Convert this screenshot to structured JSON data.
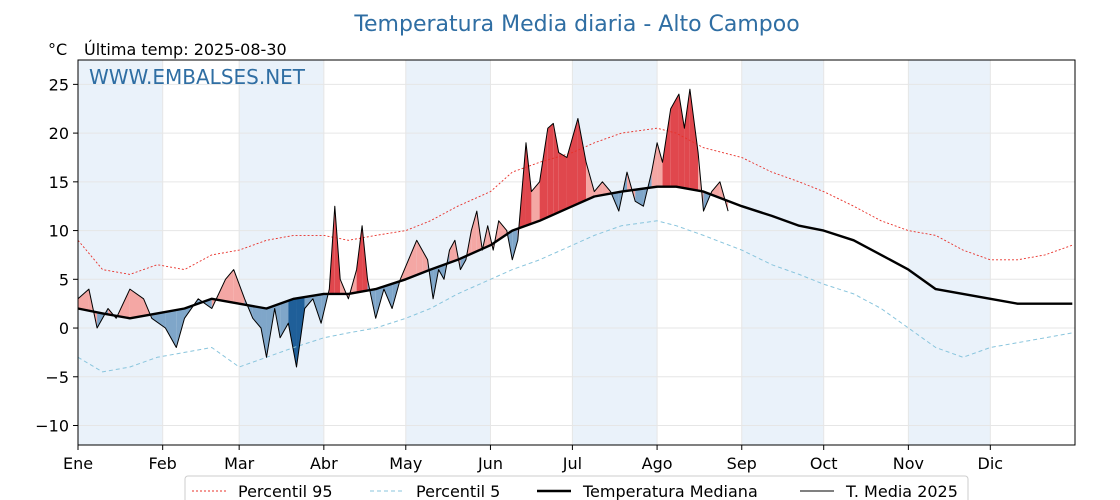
{
  "chart_data": {
    "type": "line",
    "title": "Temperatura Media diaria - Alto Campoo",
    "unit": "°C",
    "last_reading": "Última temp: 2025-08-30",
    "watermark": "WWW.EMBALSES.NET",
    "ylim": [
      -12,
      27.5
    ],
    "yticks": [
      -10,
      -5,
      0,
      5,
      10,
      15,
      20,
      25
    ],
    "months": [
      "Ene",
      "Feb",
      "Mar",
      "Abr",
      "May",
      "Jun",
      "Jul",
      "Ago",
      "Sep",
      "Oct",
      "Nov",
      "Dic"
    ],
    "month_start_days": [
      1,
      32,
      60,
      91,
      121,
      152,
      182,
      213,
      244,
      274,
      305,
      335
    ],
    "grid": true,
    "legend_position": "bottom",
    "colors": {
      "p95": "#e8312a",
      "p5": "#89c5dd",
      "median": "#000000",
      "current": "#000000",
      "above_fill": "#f4a7a4",
      "above_fill_strong": "#e0474d",
      "below_fill": "#7fa6c9",
      "below_fill_strong": "#1f5f99",
      "band": "#eaf2fa"
    },
    "series": [
      {
        "name": "Percentil 95",
        "style": "dotted",
        "points": [
          [
            1,
            9
          ],
          [
            10,
            6
          ],
          [
            20,
            5.5
          ],
          [
            30,
            6.5
          ],
          [
            40,
            6
          ],
          [
            50,
            7.5
          ],
          [
            60,
            8
          ],
          [
            70,
            9
          ],
          [
            80,
            9.5
          ],
          [
            91,
            9.5
          ],
          [
            100,
            9
          ],
          [
            110,
            9.5
          ],
          [
            121,
            10
          ],
          [
            130,
            11
          ],
          [
            140,
            12.5
          ],
          [
            152,
            14
          ],
          [
            160,
            16
          ],
          [
            170,
            17
          ],
          [
            182,
            18
          ],
          [
            190,
            19
          ],
          [
            200,
            20
          ],
          [
            213,
            20.5
          ],
          [
            220,
            20
          ],
          [
            230,
            18.5
          ],
          [
            244,
            17.5
          ],
          [
            255,
            16
          ],
          [
            265,
            15
          ],
          [
            274,
            14
          ],
          [
            285,
            12.5
          ],
          [
            295,
            11
          ],
          [
            305,
            10
          ],
          [
            315,
            9.5
          ],
          [
            325,
            8
          ],
          [
            335,
            7
          ],
          [
            345,
            7
          ],
          [
            355,
            7.5
          ],
          [
            365,
            8.5
          ]
        ]
      },
      {
        "name": "Percentil 5",
        "style": "dashed",
        "points": [
          [
            1,
            -3
          ],
          [
            10,
            -4.5
          ],
          [
            20,
            -4
          ],
          [
            30,
            -3
          ],
          [
            40,
            -2.5
          ],
          [
            50,
            -2
          ],
          [
            60,
            -4
          ],
          [
            70,
            -3
          ],
          [
            80,
            -2
          ],
          [
            91,
            -1
          ],
          [
            100,
            -0.5
          ],
          [
            110,
            0
          ],
          [
            121,
            1
          ],
          [
            130,
            2
          ],
          [
            140,
            3.5
          ],
          [
            152,
            5
          ],
          [
            160,
            6
          ],
          [
            170,
            7
          ],
          [
            182,
            8.5
          ],
          [
            190,
            9.5
          ],
          [
            200,
            10.5
          ],
          [
            213,
            11
          ],
          [
            220,
            10.5
          ],
          [
            230,
            9.5
          ],
          [
            244,
            8
          ],
          [
            255,
            6.5
          ],
          [
            265,
            5.5
          ],
          [
            274,
            4.5
          ],
          [
            285,
            3.5
          ],
          [
            295,
            2
          ],
          [
            305,
            0
          ],
          [
            315,
            -2
          ],
          [
            325,
            -3
          ],
          [
            335,
            -2
          ],
          [
            345,
            -1.5
          ],
          [
            355,
            -1
          ],
          [
            365,
            -0.5
          ]
        ]
      },
      {
        "name": "Temperatura Mediana",
        "style": "solid-thick",
        "points": [
          [
            1,
            2
          ],
          [
            10,
            1.5
          ],
          [
            20,
            1
          ],
          [
            30,
            1.5
          ],
          [
            40,
            2
          ],
          [
            50,
            3
          ],
          [
            60,
            2.5
          ],
          [
            70,
            2
          ],
          [
            80,
            3
          ],
          [
            91,
            3.5
          ],
          [
            100,
            3.5
          ],
          [
            110,
            4
          ],
          [
            121,
            5
          ],
          [
            130,
            6
          ],
          [
            140,
            7
          ],
          [
            152,
            8.5
          ],
          [
            160,
            10
          ],
          [
            170,
            11
          ],
          [
            182,
            12.5
          ],
          [
            190,
            13.5
          ],
          [
            200,
            14
          ],
          [
            213,
            14.5
          ],
          [
            220,
            14.5
          ],
          [
            230,
            14
          ],
          [
            244,
            12.5
          ],
          [
            255,
            11.5
          ],
          [
            265,
            10.5
          ],
          [
            274,
            10
          ],
          [
            285,
            9
          ],
          [
            295,
            7.5
          ],
          [
            305,
            6
          ],
          [
            315,
            4
          ],
          [
            325,
            3.5
          ],
          [
            335,
            3
          ],
          [
            345,
            2.5
          ],
          [
            355,
            2.5
          ],
          [
            365,
            2.5
          ]
        ]
      },
      {
        "name": "T. Media 2025",
        "style": "solid-thin",
        "points": [
          [
            1,
            3
          ],
          [
            5,
            4
          ],
          [
            8,
            0
          ],
          [
            12,
            2
          ],
          [
            15,
            1
          ],
          [
            20,
            4
          ],
          [
            25,
            3
          ],
          [
            28,
            1
          ],
          [
            33,
            0
          ],
          [
            37,
            -2
          ],
          [
            40,
            1
          ],
          [
            45,
            3
          ],
          [
            50,
            2
          ],
          [
            55,
            5
          ],
          [
            58,
            6
          ],
          [
            62,
            3
          ],
          [
            65,
            1
          ],
          [
            68,
            0
          ],
          [
            70,
            -3
          ],
          [
            73,
            2
          ],
          [
            75,
            -1
          ],
          [
            78,
            0.5
          ],
          [
            81,
            -4
          ],
          [
            84,
            2
          ],
          [
            87,
            3
          ],
          [
            90,
            0.5
          ],
          [
            93,
            4
          ],
          [
            95,
            12.5
          ],
          [
            97,
            5
          ],
          [
            100,
            3
          ],
          [
            103,
            6
          ],
          [
            105,
            10.5
          ],
          [
            107,
            5
          ],
          [
            110,
            1
          ],
          [
            113,
            4
          ],
          [
            116,
            2
          ],
          [
            119,
            5
          ],
          [
            122,
            7
          ],
          [
            125,
            9
          ],
          [
            127,
            8
          ],
          [
            129,
            7
          ],
          [
            131,
            3
          ],
          [
            133,
            6
          ],
          [
            135,
            5
          ],
          [
            137,
            8
          ],
          [
            139,
            9
          ],
          [
            141,
            6
          ],
          [
            143,
            7
          ],
          [
            145,
            10
          ],
          [
            147,
            12
          ],
          [
            149,
            8
          ],
          [
            151,
            10.5
          ],
          [
            153,
            8
          ],
          [
            155,
            11
          ],
          [
            158,
            10
          ],
          [
            160,
            7
          ],
          [
            162,
            9
          ],
          [
            165,
            19
          ],
          [
            167,
            14
          ],
          [
            170,
            15
          ],
          [
            173,
            20.5
          ],
          [
            175,
            21
          ],
          [
            177,
            18
          ],
          [
            180,
            17.5
          ],
          [
            184,
            21.5
          ],
          [
            187,
            17
          ],
          [
            190,
            14
          ],
          [
            193,
            15
          ],
          [
            196,
            14
          ],
          [
            199,
            12
          ],
          [
            202,
            16
          ],
          [
            205,
            13
          ],
          [
            208,
            12.5
          ],
          [
            211,
            16
          ],
          [
            213,
            19
          ],
          [
            215,
            17
          ],
          [
            218,
            22.5
          ],
          [
            221,
            24
          ],
          [
            223,
            20.5
          ],
          [
            225,
            24.5
          ],
          [
            228,
            18
          ],
          [
            230,
            12
          ],
          [
            233,
            14
          ],
          [
            236,
            15
          ],
          [
            239,
            12
          ]
        ]
      }
    ]
  },
  "legend": [
    {
      "label": "Percentil 95",
      "style": "dotted",
      "color": "#e8312a"
    },
    {
      "label": "Percentil 5",
      "style": "dashed",
      "color": "#89c5dd"
    },
    {
      "label": "Temperatura Mediana",
      "style": "solid-thick",
      "color": "#000000"
    },
    {
      "label": "T. Media 2025",
      "style": "solid-thin",
      "color": "#000000"
    }
  ]
}
